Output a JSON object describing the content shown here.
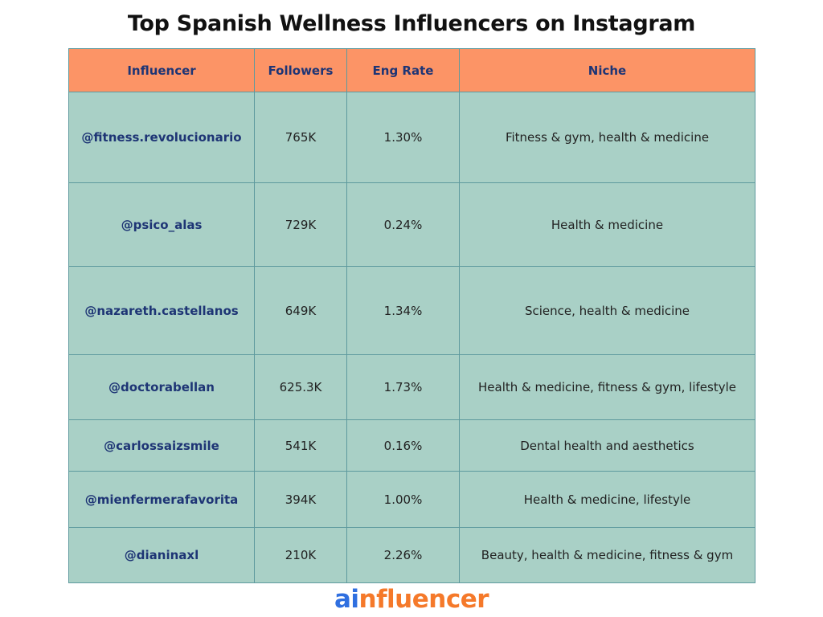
{
  "header": {
    "title": "Top Spanish Wellness Influencers on Instagram"
  },
  "table": {
    "columns": [
      "Influencer",
      "Followers",
      "Eng Rate",
      "Niche"
    ],
    "rows": [
      [
        "@fitness.revolucionario",
        "765K",
        "1.30%",
        "Fitness & gym, health & medicine"
      ],
      [
        "@psico_alas",
        "729K",
        "0.24%",
        "Health & medicine"
      ],
      [
        "@nazareth.castellanos",
        "649K",
        "1.34%",
        "Science, health & medicine"
      ],
      [
        "@doctorabellan",
        "625.3K",
        "1.73%",
        "Health & medicine, fitness & gym, lifestyle"
      ],
      [
        "@carlossaizsmile",
        "541K",
        "0.16%",
        "Dental health and aesthetics"
      ],
      [
        "@mienfermerafavorita",
        "394K",
        "1.00%",
        "Health & medicine, lifestyle"
      ],
      [
        "@dianinaxl",
        "210K",
        "2.26%",
        "Beauty, health & medicine, fitness & gym"
      ]
    ]
  },
  "footer": {
    "logo_part1": "ai",
    "logo_part2": "nfluencer"
  }
}
